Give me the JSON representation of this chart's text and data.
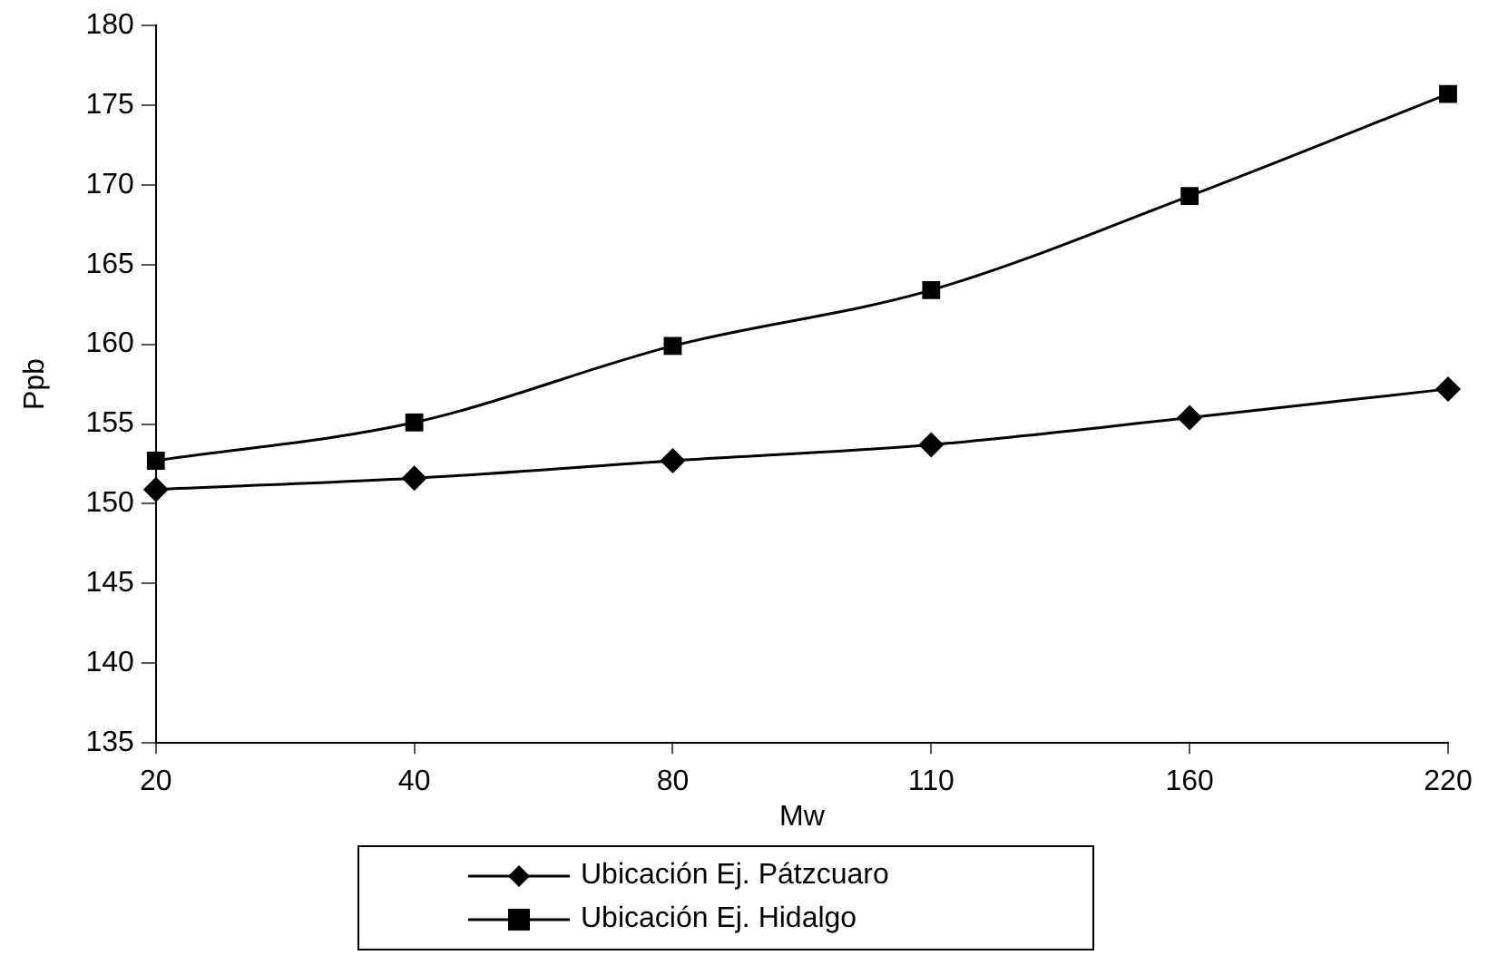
{
  "chart_data": {
    "type": "line",
    "xlabel": "Mw",
    "ylabel": "Ppb",
    "categories": [
      "20",
      "40",
      "80",
      "110",
      "160",
      "220"
    ],
    "series": [
      {
        "name": "Ubicación Ej. Pátzcuaro",
        "color": "#000000",
        "marker": "diamond",
        "values": [
          150.9,
          151.6,
          152.7,
          153.7,
          155.4,
          157.2
        ]
      },
      {
        "name": "Ubicación Ej. Hidalgo",
        "color": "#000000",
        "marker": "square",
        "values": [
          152.7,
          155.1,
          159.9,
          163.4,
          169.3,
          175.7
        ]
      }
    ],
    "ylim": [
      135,
      180
    ],
    "yticks": [
      135,
      140,
      145,
      150,
      155,
      160,
      165,
      170,
      175,
      180
    ],
    "grid": false,
    "legend": "bottom",
    "line_style": "solid"
  }
}
